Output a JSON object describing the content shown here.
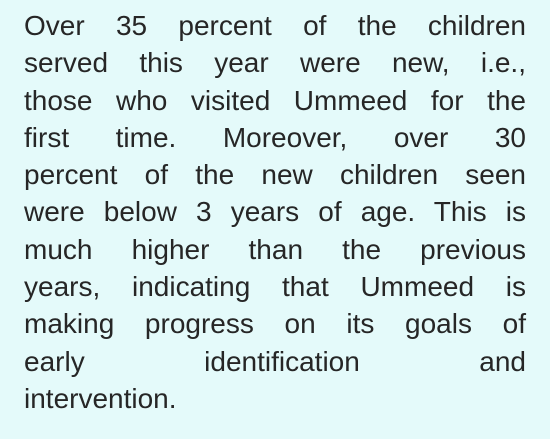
{
  "paragraph": {
    "lines": [
      "Over 35 percent of the children",
      "served this year were new, i.e.,",
      "those who visited Ummeed for the",
      "first time. Moreover, over 30",
      "percent of the new children seen",
      "were below 3 years of age. This is",
      "much higher than the previous",
      "years, indicating that Ummeed is",
      "making progress on its goals of",
      "early identification and",
      "intervention."
    ]
  }
}
